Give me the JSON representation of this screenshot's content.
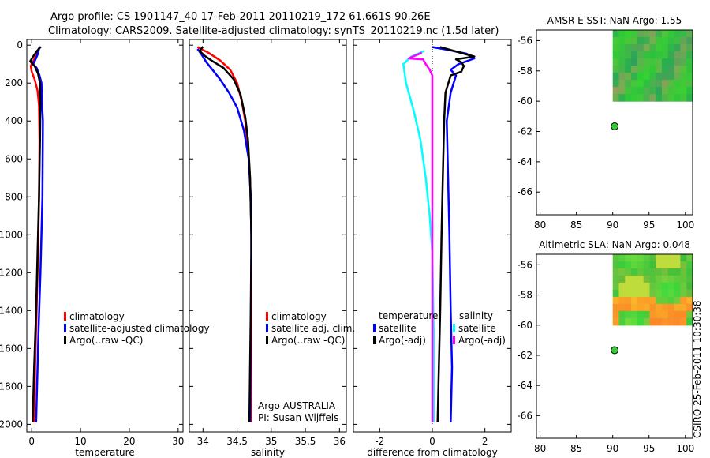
{
  "header": {
    "line1": "Argo profile: CS 1901147_40 17-Feb-2011 20110219_172 61.661S 90.26E",
    "line2": "Climatology: CARS2009. Satellite-adjusted climatology: synTS_20110219.nc (1.5d later)"
  },
  "side_stamp": "CSIRO 25-Feb-2011 10:30:38",
  "chart_data": [
    {
      "id": "temperature",
      "type": "line",
      "xlabel": "temperature",
      "ylabel": "",
      "xlim": [
        -1,
        31
      ],
      "ylim": [
        2040,
        -30
      ],
      "x_ticks": [
        0,
        10,
        20,
        30
      ],
      "y_ticks": [
        0,
        200,
        400,
        600,
        800,
        1000,
        1200,
        1400,
        1600,
        1800,
        2000
      ],
      "legend": [
        {
          "label": "climatology",
          "color": "#ff0000"
        },
        {
          "label": "satellite-adjusted climatology",
          "color": "#0000ff"
        },
        {
          "label": "Argo(..raw -QC)",
          "color": "#000000"
        }
      ],
      "series": [
        {
          "name": "climatology",
          "color": "#ff0000",
          "points": [
            [
              1.6,
              10
            ],
            [
              1.0,
              50
            ],
            [
              0.2,
              90
            ],
            [
              -0.2,
              110
            ],
            [
              0.0,
              140
            ],
            [
              0.6,
              180
            ],
            [
              1.2,
              240
            ],
            [
              1.5,
              320
            ],
            [
              1.6,
              500
            ],
            [
              1.5,
              800
            ],
            [
              1.3,
              1100
            ],
            [
              1.0,
              1400
            ],
            [
              0.7,
              1700
            ],
            [
              0.5,
              1990
            ]
          ]
        },
        {
          "name": "satellite-adjusted climatology",
          "color": "#0000ff",
          "points": [
            [
              1.6,
              10
            ],
            [
              1.2,
              50
            ],
            [
              0.7,
              80
            ],
            [
              0.3,
              100
            ],
            [
              1.0,
              120
            ],
            [
              1.6,
              160
            ],
            [
              2.0,
              200
            ],
            [
              2.1,
              300
            ],
            [
              2.3,
              400
            ],
            [
              2.2,
              800
            ],
            [
              1.8,
              1200
            ],
            [
              1.4,
              1500
            ],
            [
              1.1,
              1800
            ],
            [
              0.9,
              1990
            ]
          ]
        },
        {
          "name": "Argo(..raw -QC)",
          "color": "#000000",
          "points": [
            [
              1.9,
              8
            ],
            [
              1.1,
              30
            ],
            [
              0.3,
              60
            ],
            [
              -0.3,
              85
            ],
            [
              0.6,
              110
            ],
            [
              1.3,
              150
            ],
            [
              1.7,
              200
            ],
            [
              1.8,
              300
            ],
            [
              1.7,
              500
            ],
            [
              1.5,
              800
            ],
            [
              1.2,
              1100
            ],
            [
              0.9,
              1400
            ],
            [
              0.5,
              1700
            ],
            [
              0.2,
              1990
            ]
          ]
        }
      ]
    },
    {
      "id": "salinity",
      "type": "line",
      "xlabel": "salinity",
      "ylabel": "",
      "xlim": [
        33.8,
        36.1
      ],
      "ylim": [
        2040,
        -30
      ],
      "x_ticks": [
        34,
        34.5,
        35,
        35.5,
        36
      ],
      "x_tick_labels": [
        "34",
        "34.5",
        "35",
        "35.5",
        "36"
      ],
      "legend": [
        {
          "label": "climatology",
          "color": "#ff0000"
        },
        {
          "label": "satellite adj. clim.",
          "color": "#0000ff"
        },
        {
          "label": "Argo(..raw -QC)",
          "color": "#000000"
        }
      ],
      "annotation": [
        "Argo AUSTRALIA",
        "PI: Susan Wijffels"
      ],
      "series": [
        {
          "name": "climatology",
          "color": "#ff0000",
          "points": [
            [
              33.92,
              10
            ],
            [
              34.08,
              40
            ],
            [
              34.25,
              80
            ],
            [
              34.4,
              130
            ],
            [
              34.5,
              200
            ],
            [
              34.57,
              300
            ],
            [
              34.62,
              400
            ],
            [
              34.66,
              550
            ],
            [
              34.69,
              700
            ],
            [
              34.71,
              1000
            ],
            [
              34.71,
              1400
            ],
            [
              34.7,
              1990
            ]
          ]
        },
        {
          "name": "satellite adj. clim.",
          "color": "#0000ff",
          "points": [
            [
              33.92,
              20
            ],
            [
              33.98,
              50
            ],
            [
              34.05,
              90
            ],
            [
              34.14,
              130
            ],
            [
              34.25,
              180
            ],
            [
              34.38,
              250
            ],
            [
              34.5,
              330
            ],
            [
              34.6,
              450
            ],
            [
              34.67,
              600
            ],
            [
              34.7,
              800
            ],
            [
              34.71,
              1100
            ],
            [
              34.7,
              1500
            ],
            [
              34.69,
              1990
            ]
          ]
        },
        {
          "name": "Argo(..raw -QC)",
          "color": "#000000",
          "points": [
            [
              34.0,
              8
            ],
            [
              33.95,
              30
            ],
            [
              34.02,
              55
            ],
            [
              34.12,
              80
            ],
            [
              34.3,
              120
            ],
            [
              34.45,
              180
            ],
            [
              34.55,
              260
            ],
            [
              34.62,
              380
            ],
            [
              34.66,
              500
            ],
            [
              34.69,
              700
            ],
            [
              34.71,
              1000
            ],
            [
              34.7,
              1400
            ],
            [
              34.68,
              1990
            ]
          ]
        }
      ]
    },
    {
      "id": "difference",
      "type": "line",
      "xlabel": "difference from climatology",
      "ylabel": "",
      "xlim": [
        -3,
        3
      ],
      "ylim": [
        2040,
        -30
      ],
      "x_ticks": [
        -2,
        0,
        2
      ],
      "legend_left_title": "temperature",
      "legend_right_title": "salinity",
      "legend": [
        {
          "label": "satellite",
          "color": "#0000ff"
        },
        {
          "label": "Argo(-adj)",
          "color": "#000000"
        },
        {
          "label": "satellite",
          "color": "#00ffff"
        },
        {
          "label": "Argo(-adj)",
          "color": "#ff00ff"
        }
      ],
      "series": [
        {
          "name": "temperature satellite",
          "color": "#0000ff",
          "points": [
            [
              0.0,
              10
            ],
            [
              0.6,
              25
            ],
            [
              1.3,
              45
            ],
            [
              1.6,
              70
            ],
            [
              1.0,
              100
            ],
            [
              0.7,
              130
            ],
            [
              0.9,
              160
            ],
            [
              0.7,
              250
            ],
            [
              0.55,
              400
            ],
            [
              0.6,
              700
            ],
            [
              0.65,
              1000
            ],
            [
              0.7,
              1400
            ],
            [
              0.75,
              1700
            ],
            [
              0.7,
              1990
            ]
          ]
        },
        {
          "name": "temperature Argo(-adj)",
          "color": "#000000",
          "points": [
            [
              0.3,
              10
            ],
            [
              1.2,
              45
            ],
            [
              1.6,
              60
            ],
            [
              0.9,
              75
            ],
            [
              1.1,
              90
            ],
            [
              1.2,
              110
            ],
            [
              1.1,
              140
            ],
            [
              0.7,
              160
            ],
            [
              0.5,
              250
            ],
            [
              0.45,
              400
            ],
            [
              0.4,
              700
            ],
            [
              0.35,
              1000
            ],
            [
              0.3,
              1400
            ],
            [
              0.25,
              1700
            ],
            [
              0.2,
              1990
            ]
          ]
        },
        {
          "name": "salinity satellite",
          "color": "#00ffff",
          "points": [
            [
              -0.3,
              30
            ],
            [
              -0.8,
              60
            ],
            [
              -1.1,
              100
            ],
            [
              -1.0,
              200
            ],
            [
              -0.7,
              350
            ],
            [
              -0.45,
              500
            ],
            [
              -0.25,
              700
            ],
            [
              -0.1,
              900
            ],
            [
              0.0,
              1100
            ],
            [
              0.05,
              1500
            ],
            [
              0.05,
              1990
            ]
          ]
        },
        {
          "name": "salinity Argo(-adj)",
          "color": "#ff00ff",
          "points": [
            [
              -0.4,
              40
            ],
            [
              -0.9,
              70
            ],
            [
              -0.35,
              75
            ],
            [
              -0.25,
              100
            ],
            [
              -0.1,
              130
            ],
            [
              0.0,
              160
            ],
            [
              0.0,
              400
            ],
            [
              0.0,
              1990
            ]
          ]
        }
      ]
    },
    {
      "id": "amsr_sst",
      "type": "heatmap",
      "title": "AMSR-E SST: NaN Argo: 1.55",
      "xlim": [
        79.5,
        101
      ],
      "ylim": [
        -67.5,
        -55.3
      ],
      "x_ticks": [
        80,
        85,
        90,
        95,
        100
      ],
      "y_ticks": [
        -56,
        -58,
        -60,
        -62,
        -64,
        -66
      ],
      "data_extent": {
        "lon": [
          90,
          101
        ],
        "lat": [
          -60,
          -55.3
        ]
      },
      "argo_point": {
        "lon": 90.26,
        "lat": -61.661
      }
    },
    {
      "id": "altimetric_sla",
      "type": "heatmap",
      "title": "Altimetric SLA: NaN Argo: 0.048",
      "xlim": [
        79.5,
        101
      ],
      "ylim": [
        -67.5,
        -55.3
      ],
      "x_ticks": [
        80,
        85,
        90,
        95,
        100
      ],
      "y_ticks": [
        -56,
        -58,
        -60,
        -62,
        -64,
        -66
      ],
      "data_extent": {
        "lon": [
          90,
          101
        ],
        "lat": [
          -60,
          -55.3
        ]
      },
      "argo_point": {
        "lon": 90.26,
        "lat": -61.661
      }
    }
  ]
}
